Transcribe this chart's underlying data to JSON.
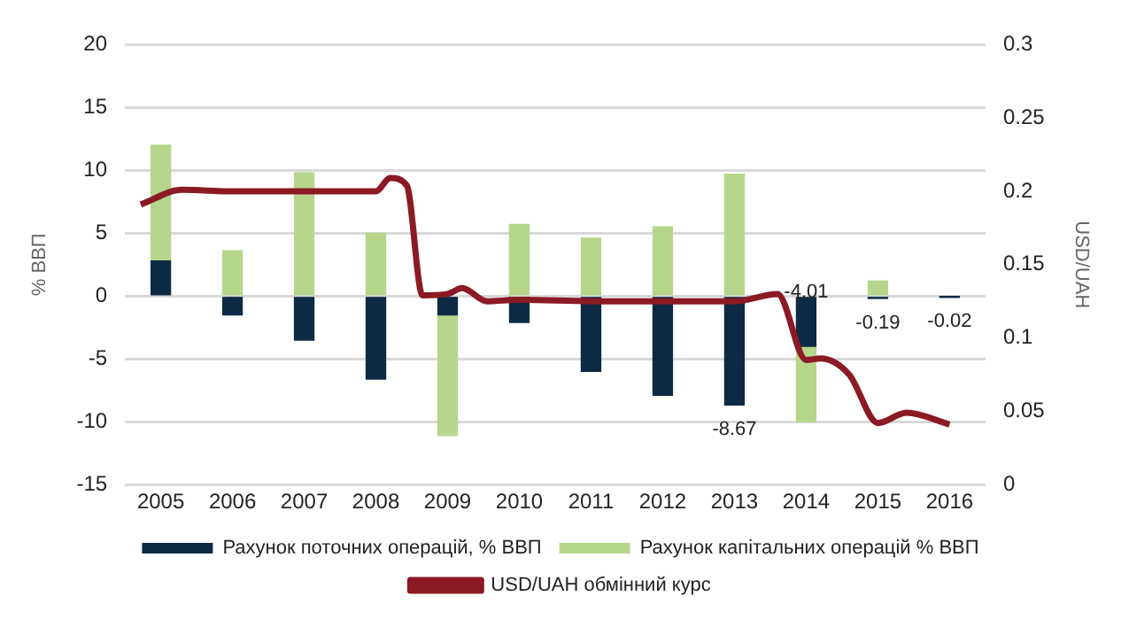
{
  "chart_data": {
    "type": "bar",
    "x": [
      2005,
      2006,
      2007,
      2008,
      2009,
      2010,
      2011,
      2012,
      2013,
      2014,
      2015,
      2016
    ],
    "xlim": [
      2004.5,
      2016.5
    ],
    "xticks": [
      2005,
      2006,
      2007,
      2008,
      2009,
      2010,
      2011,
      2012,
      2013,
      2014,
      2015,
      2016
    ],
    "ylabel": "% ВВП",
    "y2label": "USD/UAH",
    "ylim": [
      -15,
      20
    ],
    "yticks": [
      -15,
      -10,
      -5,
      0,
      5,
      10,
      15,
      20
    ],
    "y2lim": [
      0,
      0.3
    ],
    "y2ticks": [
      0,
      0.05,
      0.1,
      0.15,
      0.2,
      0.25,
      0.3
    ],
    "grid": "y",
    "legend": "bottom",
    "stacked": true,
    "series": [
      {
        "name": "Рахунок поточних операцій, % ВВП",
        "color": "#0d2a45",
        "values": [
          2.8,
          -1.5,
          -3.5,
          -6.6,
          -1.5,
          -2.1,
          -6.0,
          -7.9,
          -8.67,
          -4.01,
          -0.19,
          -0.02
        ],
        "value_labels": [
          null,
          null,
          null,
          null,
          null,
          null,
          null,
          null,
          "-8.67",
          "-4.01",
          "-0.19",
          "-0.02"
        ]
      },
      {
        "name": "Рахунок капітальних операцій % ВВП",
        "color": "#b5d68b",
        "values": [
          9.2,
          3.6,
          9.8,
          5.0,
          -9.6,
          5.7,
          4.6,
          5.5,
          9.7,
          -6.0,
          1.2,
          null
        ]
      },
      {
        "name": "USD/UAH обмінний курс",
        "type": "line",
        "axis": "y2",
        "color": "#8b1a24",
        "marker": "none",
        "x": [
          2004.72,
          2005.3,
          2006,
          2007,
          2008,
          2008.2,
          2008.43,
          2008.65,
          2009,
          2009.2,
          2009.55,
          2010,
          2011,
          2012,
          2013,
          2013.6,
          2014.0,
          2014.2,
          2014.6,
          2015.0,
          2015.4,
          2016.0
        ],
        "values": [
          0.191,
          0.201,
          0.2,
          0.2,
          0.2,
          0.209,
          0.204,
          0.129,
          0.13,
          0.134,
          0.125,
          0.126,
          0.125,
          0.125,
          0.125,
          0.13,
          0.085,
          0.086,
          0.075,
          0.042,
          0.049,
          0.041
        ]
      }
    ]
  }
}
